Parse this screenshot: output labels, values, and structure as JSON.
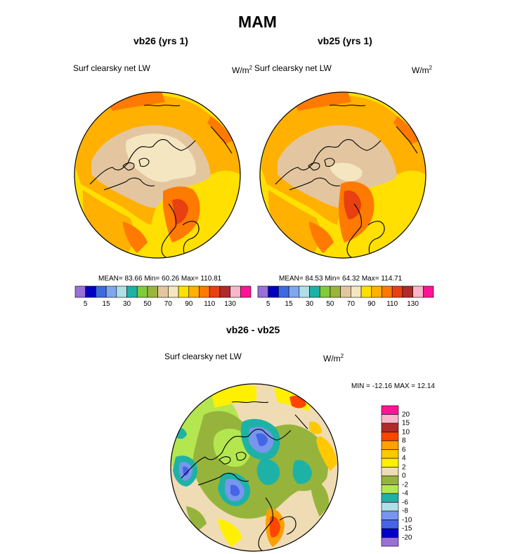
{
  "title": "MAM",
  "panels": [
    {
      "subtitle": "vb26 (yrs 1)",
      "variable": "Surf clearsky net LW",
      "units_base": "W/m",
      "units_exp": "2",
      "stats": "MEAN=  83.66  Min=  60.26  Max= 110.81"
    },
    {
      "subtitle": "vb25 (yrs 1)",
      "variable": "Surf clearsky net LW",
      "units_base": "W/m",
      "units_exp": "2",
      "stats": "MEAN=  84.53  Min=  64.32  Max= 114.71"
    }
  ],
  "abs_colorbar": {
    "colors": [
      "#9b6fd8",
      "#0000c0",
      "#3d6ae0",
      "#7fa6ee",
      "#aee0e6",
      "#1eb2a6",
      "#7ecc3a",
      "#9cb43c",
      "#e3c6a0",
      "#f4e6c0",
      "#ffe000",
      "#ffb000",
      "#ff7a00",
      "#e84010",
      "#b02a2a",
      "#f8b6c8",
      "#ff1496"
    ],
    "tick_labels": [
      "5",
      "15",
      "30",
      "50",
      "70",
      "90",
      "110",
      "130"
    ]
  },
  "diff": {
    "title": "vb26 - vb25",
    "variable": "Surf clearsky net LW",
    "units_base": "W/m",
    "units_exp": "2",
    "stats": "MIN = -12.16 MAX =  12.14",
    "colors_top_down": [
      "#ff1496",
      "#f8b6c8",
      "#b02a2a",
      "#ff4500",
      "#ffa000",
      "#ffc800",
      "#fff000",
      "#f0dcb4",
      "#96b43c",
      "#b4e650",
      "#1eb2a6",
      "#aee0e6",
      "#7896ee",
      "#4664e6",
      "#0000c8",
      "#9b6fd8"
    ],
    "tick_labels_top_down": [
      "20",
      "15",
      "10",
      "8",
      "6",
      "4",
      "2",
      "0",
      "-2",
      "-4",
      "-6",
      "-8",
      "-10",
      "-15",
      "-20"
    ]
  }
}
